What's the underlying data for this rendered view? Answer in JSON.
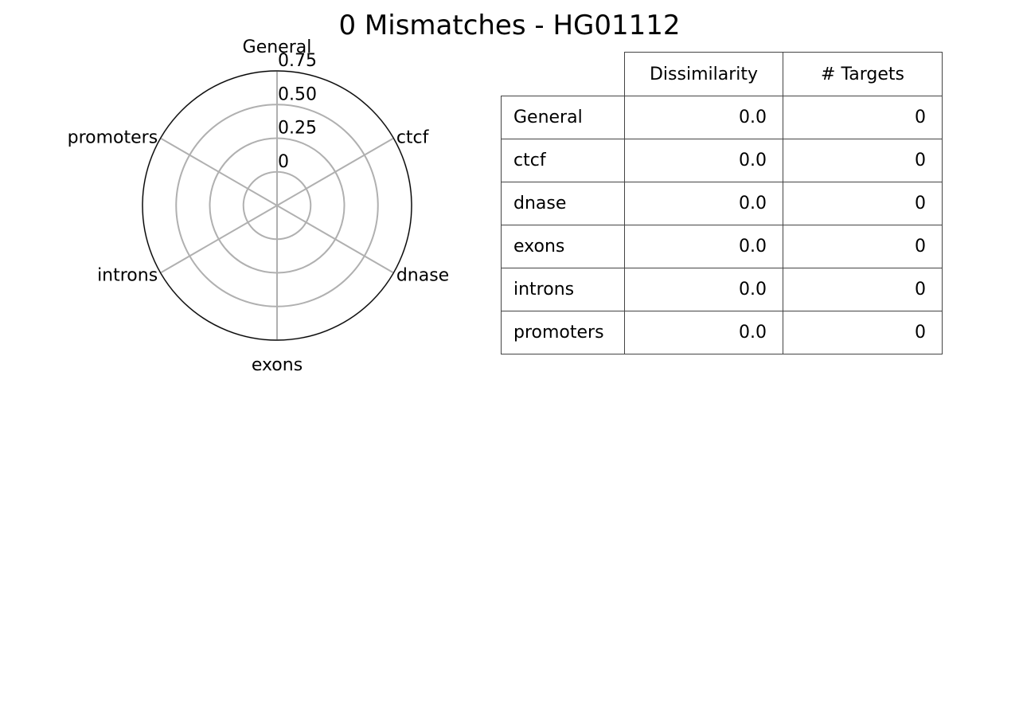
{
  "title": "0 Mismatches - HG01112",
  "chart_data": {
    "type": "radar",
    "categories": [
      "General",
      "ctcf",
      "dnase",
      "exons",
      "introns",
      "promoters"
    ],
    "values": [
      0,
      0,
      0,
      0,
      0,
      0
    ],
    "radial_ticks": [
      "0",
      "0.25",
      "0.50",
      "0.75"
    ],
    "radial_tick_values": [
      0,
      0.25,
      0.5,
      0.75
    ],
    "rlim": [
      -0.25,
      0.75
    ],
    "grid": true,
    "colors": {
      "grid": "#b0b0b0",
      "outline": "#000000"
    }
  },
  "table": {
    "columns": [
      "Dissimilarity",
      "# Targets"
    ],
    "rows": [
      {
        "label": "General",
        "dissimilarity": "0.0",
        "targets": "0"
      },
      {
        "label": "ctcf",
        "dissimilarity": "0.0",
        "targets": "0"
      },
      {
        "label": "dnase",
        "dissimilarity": "0.0",
        "targets": "0"
      },
      {
        "label": "exons",
        "dissimilarity": "0.0",
        "targets": "0"
      },
      {
        "label": "introns",
        "dissimilarity": "0.0",
        "targets": "0"
      },
      {
        "label": "promoters",
        "dissimilarity": "0.0",
        "targets": "0"
      }
    ]
  }
}
